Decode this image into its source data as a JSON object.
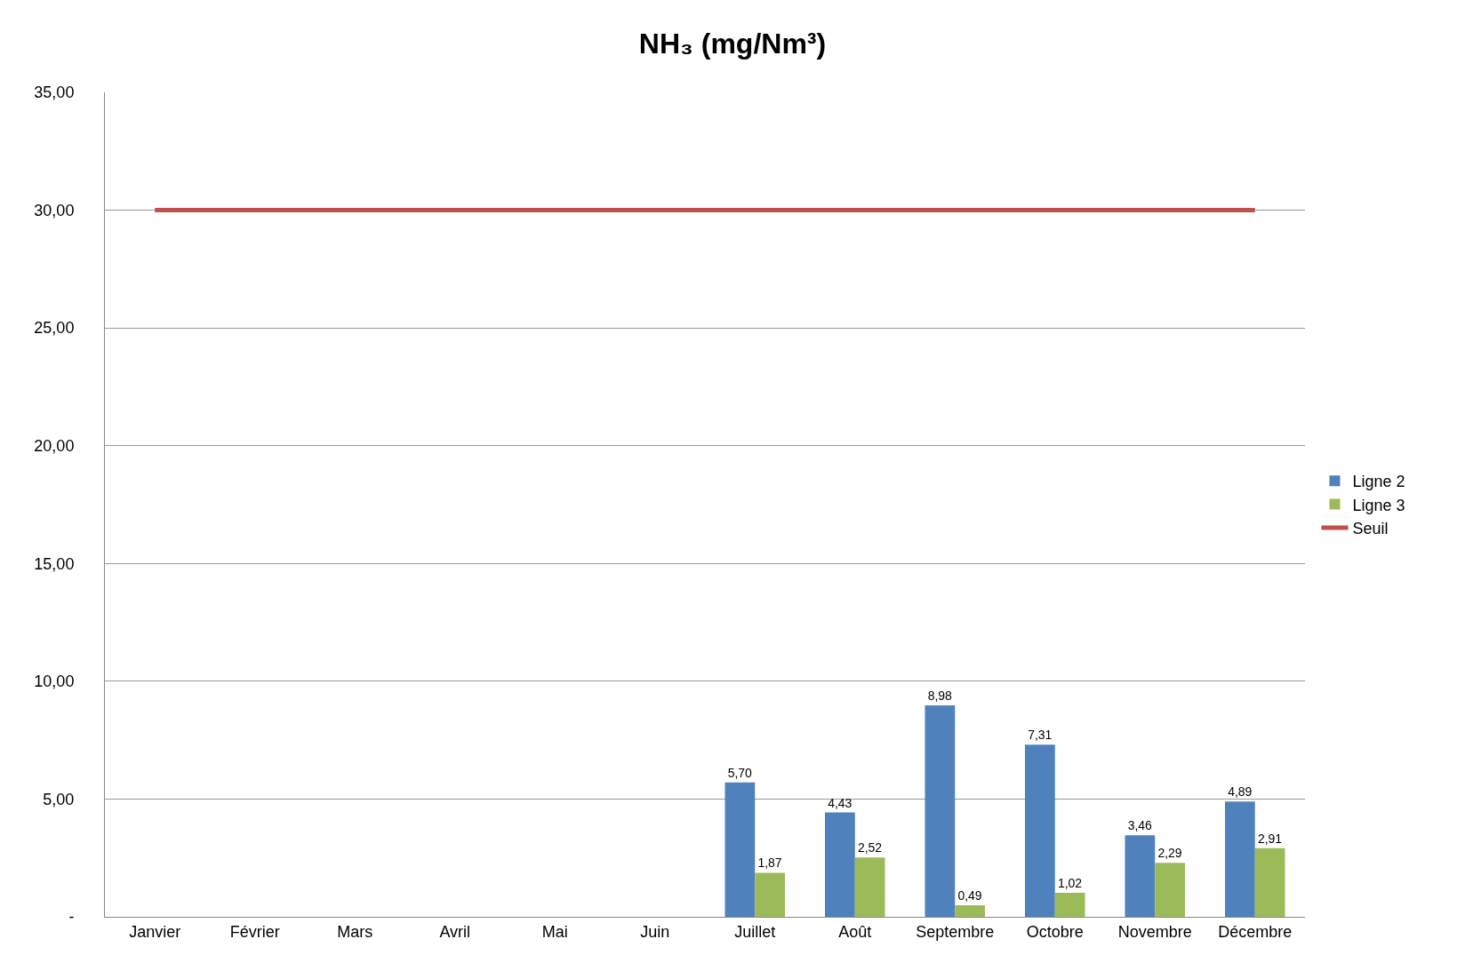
{
  "chart_data": {
    "type": "bar",
    "title": "NH₃ (mg/Nm³)",
    "categories": [
      "Janvier",
      "Février",
      "Mars",
      "Avril",
      "Mai",
      "Juin",
      "Juillet",
      "Août",
      "Septembre",
      "Octobre",
      "Novembre",
      "Décembre"
    ],
    "series": [
      {
        "name": "Ligne 2",
        "color": "#4f81bd",
        "values": [
          null,
          null,
          null,
          null,
          null,
          null,
          5.7,
          4.43,
          8.98,
          7.31,
          3.46,
          4.89
        ],
        "value_labels": [
          null,
          null,
          null,
          null,
          null,
          null,
          "5,70",
          "4,43",
          "8,98",
          "7,31",
          "3,46",
          "4,89"
        ]
      },
      {
        "name": "Ligne 3",
        "color": "#9bbb59",
        "values": [
          null,
          null,
          null,
          null,
          null,
          null,
          1.87,
          2.52,
          0.49,
          1.02,
          2.29,
          2.91
        ],
        "value_labels": [
          null,
          null,
          null,
          null,
          null,
          null,
          "1,87",
          "2,52",
          "0,49",
          "1,02",
          "2,29",
          "2,91"
        ]
      },
      {
        "name": "Seuil",
        "type": "line",
        "color": "#c0504d",
        "values": [
          30,
          30,
          30,
          30,
          30,
          30,
          30,
          30,
          30,
          30,
          30,
          30
        ]
      }
    ],
    "ylim": [
      0,
      35
    ],
    "yticks": [
      {
        "value": 0,
        "label": "-"
      },
      {
        "value": 5,
        "label": "5,00"
      },
      {
        "value": 10,
        "label": "10,00"
      },
      {
        "value": 15,
        "label": "15,00"
      },
      {
        "value": 20,
        "label": "20,00"
      },
      {
        "value": 25,
        "label": "25,00"
      },
      {
        "value": 30,
        "label": "30,00"
      },
      {
        "value": 35,
        "label": "35,00"
      }
    ],
    "grid": "y",
    "legend": "right",
    "marker": "none",
    "line_style": "solid"
  }
}
